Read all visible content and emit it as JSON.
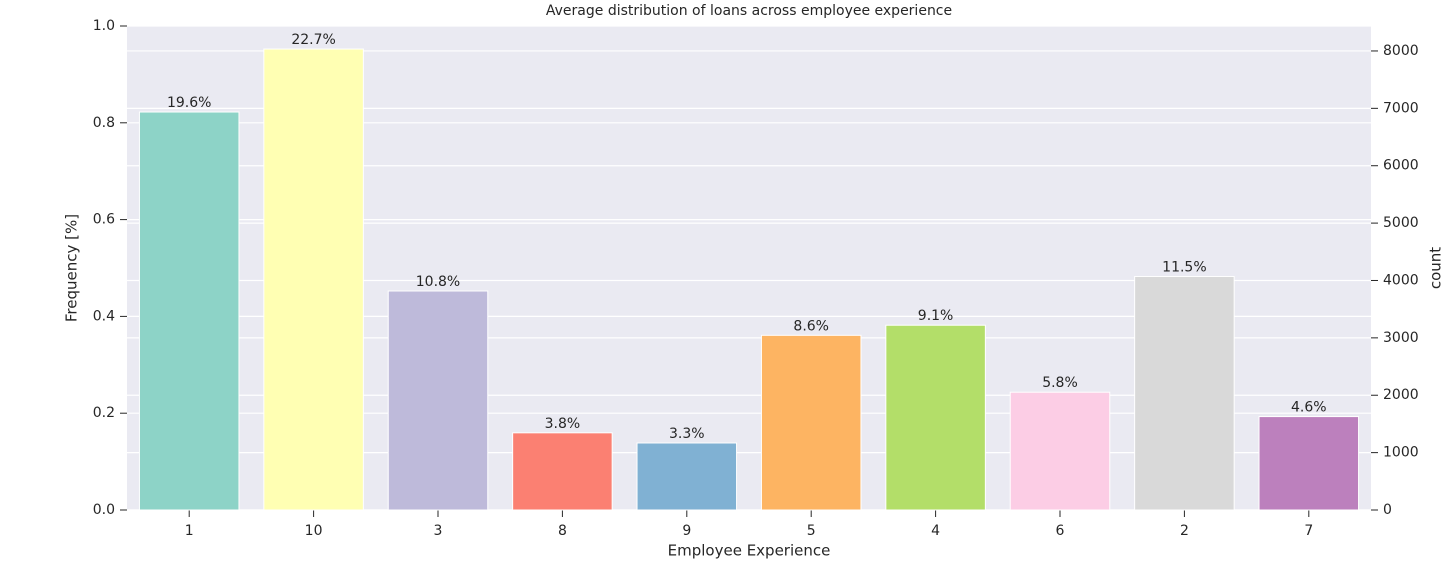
{
  "chart_data": {
    "type": "bar",
    "title": "Average distribution of loans across employee experience",
    "x_label": "Employee Experience",
    "y_label": "Frequency [%]",
    "y2_label": "count",
    "categories": [
      "1",
      "10",
      "3",
      "8",
      "9",
      "5",
      "4",
      "6",
      "2",
      "7"
    ],
    "series": [
      {
        "name": "count",
        "axis": "y2",
        "colors": [
          "#8dd3c7",
          "#ffffb3",
          "#bebada",
          "#fb8072",
          "#80b1d3",
          "#fdb462",
          "#b3de69",
          "#fccde5",
          "#d9d9d9",
          "#bc80bd"
        ],
        "values": [
          6936,
          8034,
          3817,
          1345,
          1168,
          3044,
          3220,
          2053,
          4070,
          1628
        ]
      }
    ],
    "percent_labels": [
      "19.6%",
      "22.7%",
      "10.8%",
      "3.8%",
      "3.3%",
      "8.6%",
      "9.1%",
      "5.8%",
      "11.5%",
      "4.6%"
    ],
    "ylim": [
      0,
      1
    ],
    "yticks": [
      {
        "value": 0,
        "label": "0.0"
      },
      0.2,
      0.4,
      0.6,
      0.8,
      {
        "value": 1,
        "label": "1.0"
      }
    ],
    "y2lim": [
      0,
      8435
    ],
    "y2ticks": [
      0,
      1000,
      2000,
      3000,
      4000,
      5000,
      6000,
      7000,
      8000
    ],
    "grid": true
  }
}
